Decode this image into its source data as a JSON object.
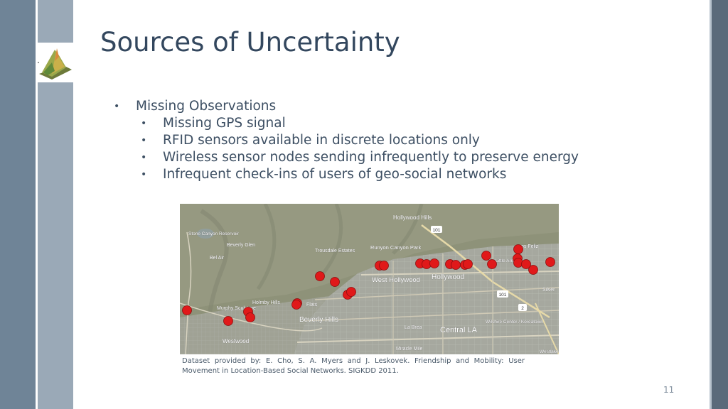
{
  "slide": {
    "title": "Sources of Uncertainty",
    "bullets": [
      {
        "text": "Missing Observations",
        "level": 1
      },
      {
        "text": "Missing GPS signal",
        "level": 2
      },
      {
        "text": "RFID sensors available in discrete locations only",
        "level": 2
      },
      {
        "text": "Wireless sensor nodes sending infrequently to preserve energy",
        "level": 2
      },
      {
        "text": "Infrequent check-ins of users of geo-social networks",
        "level": 2
      }
    ],
    "bullet_glyph": "•",
    "caption": "Dataset provided by: E. Cho, S. A. Myers and J. Leskovek. Friendship and Mobility: User Movement in Location-Based Social Networks. SIGKDD 2011.",
    "page_number": "11"
  },
  "map": {
    "marker_color": "#e0191a",
    "labels": {
      "hollywood_hills": "Hollywood Hills",
      "stone_canyon": "Stone Canyon Reservoir",
      "beverly_glen": "Beverly Glen",
      "bel_air": "Bel Air",
      "trousdale": "Trousdale Estates",
      "runyon": "Runyon Canyon Park",
      "hollywood": "Hollywood",
      "west_hollywood": "West Hollywood",
      "holmby_hills": "Holmby Hills",
      "flats": "Flats",
      "murphy": "Murphy Sculpture",
      "beverly_hills": "Beverly Hills",
      "westwood": "Westwood",
      "la_brea": "La Brea",
      "central_la": "Central LA",
      "wilshire": "Wilshire Center / Koreatown",
      "miracle_mile": "Miracle Mile",
      "silver": "Silver",
      "los_feliz": "os Feliz",
      "little_armenia": "Little Armenia",
      "westlake": "Westlake",
      "hwy101_a": "101",
      "hwy101_b": "101",
      "hwy2": "2"
    }
  }
}
